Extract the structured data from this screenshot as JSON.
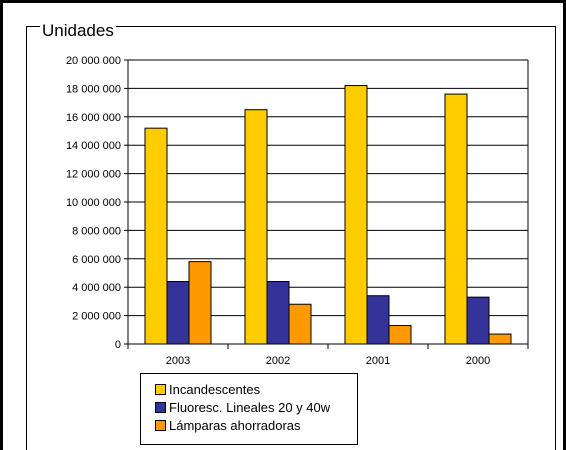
{
  "chart_data": {
    "type": "bar",
    "title": "",
    "ylabel": "Unidades",
    "xlabel": "",
    "categories": [
      "2003",
      "2002",
      "2001",
      "2000"
    ],
    "ylim": [
      0,
      20000000
    ],
    "yticks": [
      0,
      2000000,
      4000000,
      6000000,
      8000000,
      10000000,
      12000000,
      14000000,
      16000000,
      18000000,
      20000000
    ],
    "ytick_labels": [
      "0",
      "2 000 000",
      "4 000 000",
      "6 000 000",
      "8 000 000",
      "10 000 000",
      "12 000 000",
      "14 000 000",
      "16 000 000",
      "18 000 000",
      "20 000 000"
    ],
    "grid": true,
    "legend_position": "bottom",
    "series": [
      {
        "name": "Incandescentes",
        "color": "#FFCC00",
        "values": [
          15200000,
          16500000,
          18200000,
          17600000
        ]
      },
      {
        "name": "Fluoresc. Lineales 20 y 40w",
        "color": "#333399",
        "values": [
          4400000,
          4400000,
          3400000,
          3300000
        ]
      },
      {
        "name": "Lámparas ahorradoras",
        "color": "#FF9900",
        "values": [
          5800000,
          2800000,
          1300000,
          700000
        ]
      }
    ]
  }
}
